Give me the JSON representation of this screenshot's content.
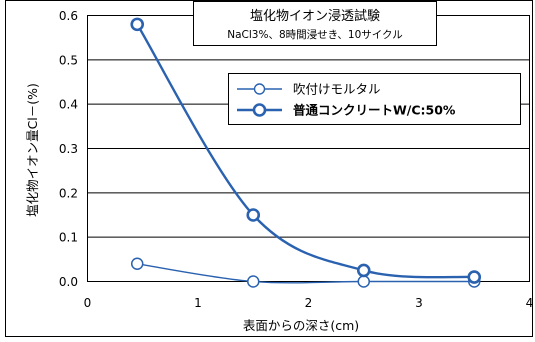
{
  "chart_data": {
    "type": "line",
    "title": "塩化物イオン浸透試験",
    "subtitle": "NaCl3%、8時間浸せき、10サイクル",
    "xlabel": "表面からの深さ(cm)",
    "ylabel": "塩化物イオン量Cl－(%)",
    "xlim": [
      0,
      4
    ],
    "ylim": [
      0.0,
      0.6
    ],
    "x_ticks": [
      "0",
      "1",
      "2",
      "3",
      "4"
    ],
    "y_ticks": [
      "0.0",
      "0.1",
      "0.2",
      "0.3",
      "0.4",
      "0.5",
      "0.6"
    ],
    "grid": "horizontal",
    "legend_position": "right-middle",
    "colors": {
      "series": "#2a62b0",
      "axis": "#000000",
      "grid": "#000000"
    },
    "series": [
      {
        "name": "吹付けモルタル",
        "marker": "circle-open",
        "x": [
          0.45,
          1.5,
          2.5,
          3.5
        ],
        "y": [
          0.04,
          0.0,
          0.0,
          0.0
        ]
      },
      {
        "name": "普通コンクリートW/C:50%",
        "marker": "circle-open-bold",
        "x": [
          0.45,
          1.5,
          2.5,
          3.5
        ],
        "y": [
          0.58,
          0.15,
          0.025,
          0.01
        ]
      }
    ]
  }
}
